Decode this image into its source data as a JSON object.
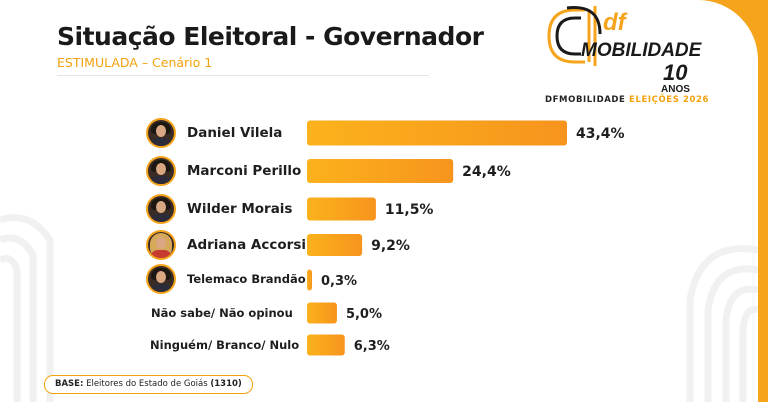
{
  "header": {
    "title": "Situação Eleitoral - Governador",
    "subtitle": "ESTIMULADA – Cenário 1"
  },
  "brand": {
    "logo_df": "df",
    "logo_name": "MOBILIDADE",
    "logo_years_number": "10",
    "logo_years_word": "ANOS",
    "tagline_part1": "DFMOBILIDADE",
    "tagline_part2": "ELEIÇÕES 2026"
  },
  "chart_data": {
    "type": "bar",
    "orientation": "horizontal",
    "categories": [
      "Daniel Vilela",
      "Marconi Perillo",
      "Wilder Morais",
      "Adriana Accorsi",
      "Telemaco Brandão",
      "Não sabe/ Não opinou",
      "Ninguém/ Branco/ Nulo"
    ],
    "values": [
      43.4,
      24.4,
      11.5,
      9.2,
      0.3,
      5.0,
      6.3
    ],
    "value_labels": [
      "43,4%",
      "24,4%",
      "11,5%",
      "9,2%",
      "0,3%",
      "5,0%",
      "6,3%"
    ],
    "unit": "%",
    "xlim": [
      0,
      43.4
    ],
    "bar_colors": [
      "#fbb21c",
      "#f7941d"
    ],
    "grid": false,
    "legend": "none"
  },
  "footer": {
    "base_label": "BASE:",
    "base_text": "Eleitores do Estado de Goiás",
    "base_count": "(1310)"
  },
  "colors": {
    "accent": "#f5a41c",
    "text": "#1e1e1e"
  }
}
